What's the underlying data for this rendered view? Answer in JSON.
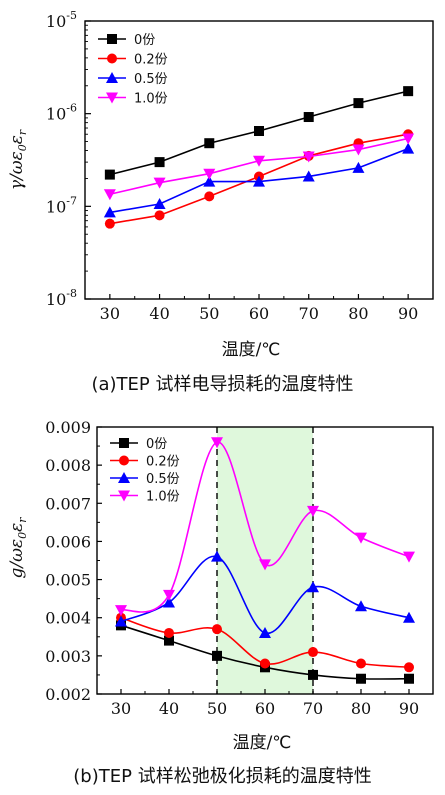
{
  "chart_data": [
    {
      "type": "line",
      "yscale": "log",
      "x": [
        30,
        40,
        50,
        60,
        70,
        80,
        90
      ],
      "xlim": [
        25,
        95
      ],
      "ylim": [
        1e-08,
        1e-05
      ],
      "xticks": [
        "30",
        "40",
        "50",
        "60",
        "70",
        "80",
        "90"
      ],
      "yticks": [
        {
          "base": "10",
          "exp": "-8"
        },
        {
          "base": "10",
          "exp": "-7"
        },
        {
          "base": "10",
          "exp": "-6"
        },
        {
          "base": "10",
          "exp": "-5"
        }
      ],
      "xlabel": "温度/℃",
      "ylabel": "γ/ωε0εr",
      "caption": "(a)TEP 试样电导损耗的温度特性",
      "legend_position": "top-left",
      "series": [
        {
          "name": "0份",
          "color": "#000000",
          "marker": "square",
          "values": [
            2.2e-07,
            3e-07,
            4.8e-07,
            6.5e-07,
            9.2e-07,
            1.3e-06,
            1.75e-06
          ]
        },
        {
          "name": "0.2份",
          "color": "#ff0000",
          "marker": "circle",
          "values": [
            6.5e-08,
            8e-08,
            1.28e-07,
            2.1e-07,
            3.5e-07,
            4.8e-07,
            6e-07
          ]
        },
        {
          "name": "0.5份",
          "color": "#0000ff",
          "marker": "triangle-up",
          "values": [
            8.6e-08,
            1.06e-07,
            1.85e-07,
            1.85e-07,
            2.1e-07,
            2.6e-07,
            4.2e-07
          ]
        },
        {
          "name": "1.0份",
          "color": "#ff00ff",
          "marker": "triangle-down",
          "values": [
            1.35e-07,
            1.8e-07,
            2.25e-07,
            3.1e-07,
            3.45e-07,
            4.1e-07,
            5.4e-07
          ]
        }
      ]
    },
    {
      "type": "line",
      "x": [
        30,
        40,
        50,
        60,
        70,
        80,
        90
      ],
      "xlim": [
        25,
        95
      ],
      "ylim": [
        0.002,
        0.009
      ],
      "xticks": [
        "30",
        "40",
        "50",
        "60",
        "70",
        "80",
        "90"
      ],
      "yticks": [
        "0.002",
        "0.003",
        "0.004",
        "0.005",
        "0.006",
        "0.007",
        "0.008",
        "0.009"
      ],
      "xlabel": "温度/℃",
      "ylabel": "g/ωε0εr",
      "caption": "(b)TEP 试样松弛极化损耗的温度特性",
      "legend_position": "top-left",
      "highlight_region": [
        50,
        70
      ],
      "highlight_color": "#dff8dc",
      "dashed_lines_x": [
        50,
        70
      ],
      "series": [
        {
          "name": "0份",
          "color": "#000000",
          "marker": "square",
          "values": [
            0.0038,
            0.0034,
            0.003,
            0.0027,
            0.0025,
            0.0024,
            0.0024
          ]
        },
        {
          "name": "0.2份",
          "color": "#ff0000",
          "marker": "circle",
          "values": [
            0.004,
            0.0036,
            0.0037,
            0.0028,
            0.0031,
            0.0028,
            0.0027
          ]
        },
        {
          "name": "0.5份",
          "color": "#0000ff",
          "marker": "triangle-up",
          "values": [
            0.0039,
            0.0044,
            0.0056,
            0.0036,
            0.0048,
            0.0043,
            0.004
          ]
        },
        {
          "name": "1.0份",
          "color": "#ff00ff",
          "marker": "triangle-down",
          "values": [
            0.0042,
            0.0046,
            0.0086,
            0.0054,
            0.0068,
            0.0061,
            0.0056
          ]
        }
      ]
    }
  ]
}
